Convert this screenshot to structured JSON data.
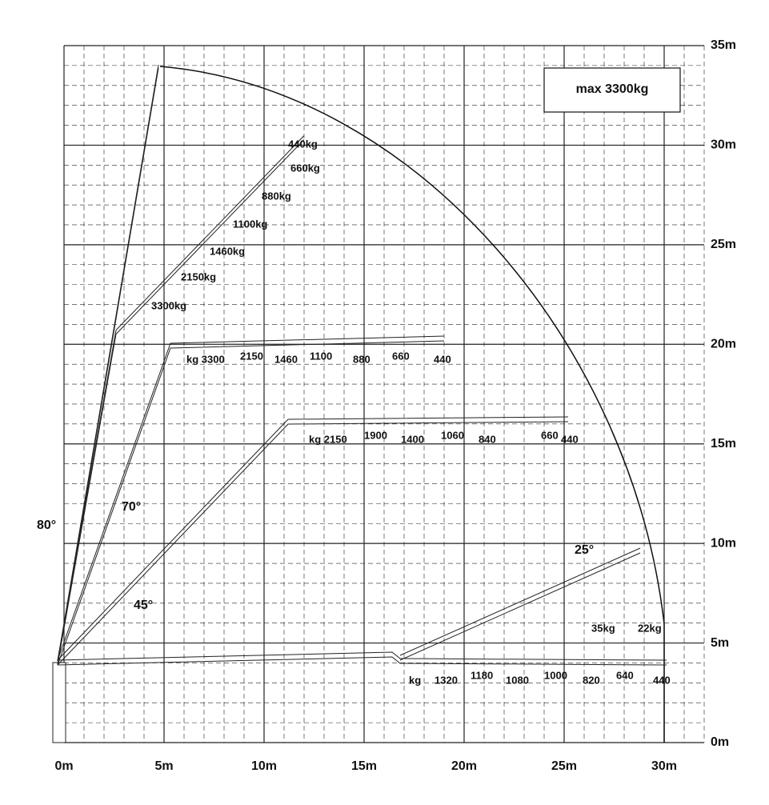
{
  "x_axis_labels": [
    "0m",
    "5m",
    "10m",
    "15m",
    "20m",
    "25m",
    "30m"
  ],
  "y_axis_labels": [
    "0m",
    "5m",
    "10m",
    "15m",
    "20m",
    "25m",
    "30m",
    "35m"
  ],
  "max_label": "max 3300kg",
  "angles": [
    "80°",
    "70°",
    "45°",
    "25°"
  ],
  "booms": [
    {
      "loads": [
        "440kg",
        "660kg",
        "880kg",
        "1100kg",
        "1460kg",
        "2150kg",
        "3300kg"
      ]
    },
    {
      "loads": [
        "kg 3300",
        "2150",
        "1460",
        "1100",
        "880",
        "660",
        "440"
      ]
    },
    {
      "loads": [
        "kg 2150",
        "1900",
        "1400",
        "1060",
        "840",
        "660",
        "440"
      ]
    },
    {
      "loads": [
        "35kg",
        "22kg"
      ]
    },
    {
      "loads": [
        "kg",
        "1320",
        "1180",
        "1080",
        "1000",
        "820",
        "640",
        "440"
      ]
    }
  ]
}
